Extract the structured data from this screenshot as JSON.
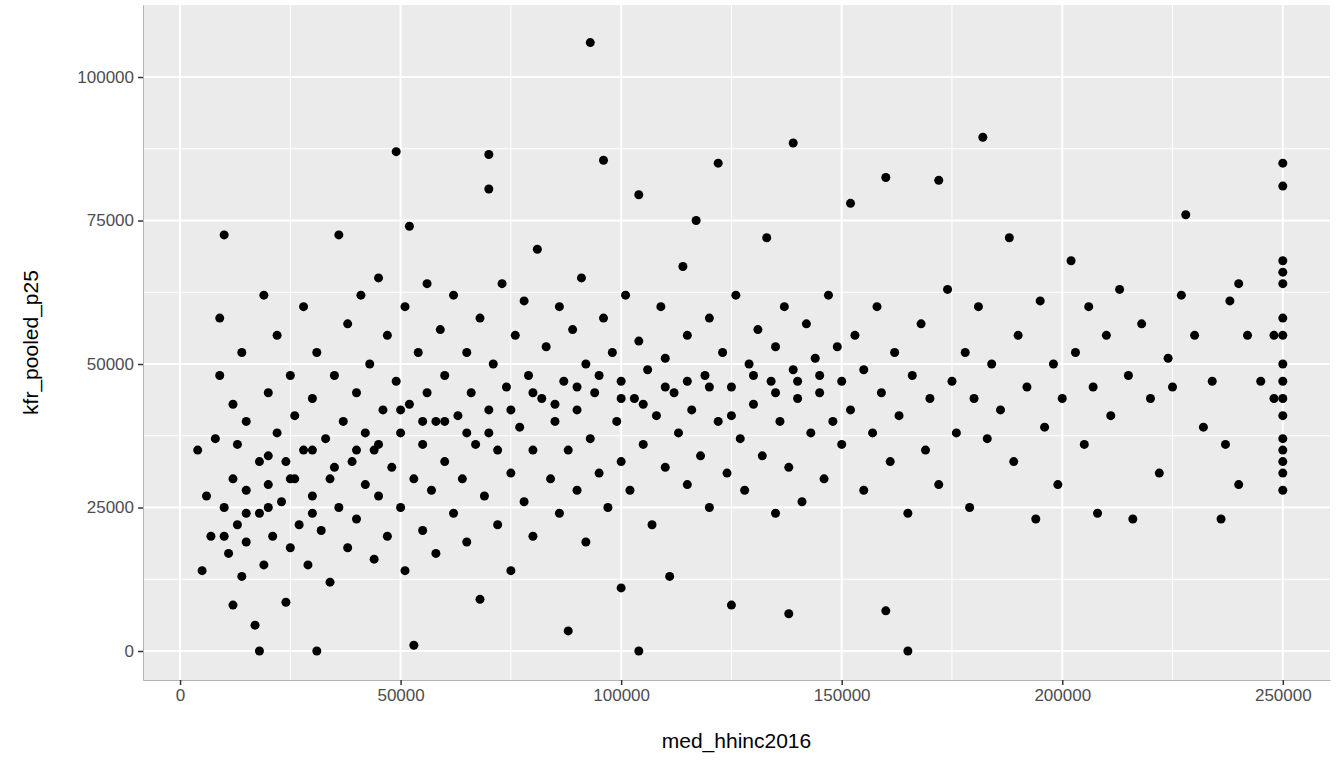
{
  "chart_data": {
    "type": "scatter",
    "x_label": "med_hhinc2016",
    "y_label": "kfr_pooled_p25",
    "color": "#000000",
    "marker": "circle",
    "grid": true,
    "xlim": [
      -8400,
      260700
    ],
    "ylim": [
      -5050,
      112550
    ],
    "xticks": [
      0,
      50000,
      100000,
      150000,
      200000,
      250000
    ],
    "yticks": [
      0,
      25000,
      50000,
      75000,
      100000
    ],
    "x": [
      4000,
      5000,
      6000,
      7000,
      8000,
      9000,
      9000,
      10000,
      10000,
      11000,
      12000,
      12000,
      12000,
      13000,
      13000,
      14000,
      14000,
      15000,
      15000,
      15000,
      17000,
      18000,
      18000,
      18000,
      19000,
      19000,
      20000,
      20000,
      21000,
      22000,
      22000,
      23000,
      24000,
      24000,
      25000,
      25000,
      26000,
      26000,
      27000,
      28000,
      28000,
      29000,
      30000,
      30000,
      31000,
      31000,
      32000,
      33000,
      34000,
      34000,
      35000,
      36000,
      36000,
      37000,
      38000,
      38000,
      39000,
      40000,
      40000,
      41000,
      42000,
      42000,
      43000,
      44000,
      44000,
      45000,
      45000,
      46000,
      47000,
      47000,
      48000,
      49000,
      49000,
      50000,
      50000,
      51000,
      51000,
      52000,
      52000,
      53000,
      53000,
      54000,
      55000,
      55000,
      56000,
      56000,
      57000,
      58000,
      58000,
      59000,
      60000,
      60000,
      62000,
      62000,
      63000,
      64000,
      65000,
      65000,
      66000,
      67000,
      68000,
      68000,
      69000,
      70000,
      70000,
      70000,
      71000,
      72000,
      72000,
      73000,
      74000,
      75000,
      75000,
      76000,
      77000,
      78000,
      78000,
      79000,
      80000,
      80000,
      81000,
      82000,
      83000,
      84000,
      85000,
      86000,
      86000,
      87000,
      88000,
      88000,
      89000,
      90000,
      90000,
      91000,
      92000,
      92000,
      93000,
      93000,
      94000,
      95000,
      96000,
      96000,
      97000,
      98000,
      99000,
      100000,
      100000,
      100000,
      101000,
      102000,
      103000,
      104000,
      104000,
      104000,
      105000,
      106000,
      107000,
      108000,
      109000,
      110000,
      110000,
      111000,
      112000,
      113000,
      114000,
      115000,
      115000,
      116000,
      117000,
      118000,
      119000,
      120000,
      120000,
      122000,
      122000,
      123000,
      124000,
      125000,
      125000,
      126000,
      127000,
      128000,
      129000,
      130000,
      131000,
      132000,
      133000,
      134000,
      135000,
      135000,
      136000,
      137000,
      138000,
      138000,
      139000,
      139000,
      140000,
      141000,
      142000,
      143000,
      144000,
      145000,
      146000,
      147000,
      148000,
      149000,
      150000,
      150000,
      152000,
      152000,
      153000,
      155000,
      155000,
      157000,
      158000,
      159000,
      160000,
      160000,
      161000,
      162000,
      163000,
      165000,
      165000,
      166000,
      168000,
      169000,
      170000,
      172000,
      172000,
      174000,
      175000,
      176000,
      178000,
      179000,
      180000,
      181000,
      182000,
      183000,
      184000,
      186000,
      188000,
      189000,
      190000,
      192000,
      194000,
      195000,
      196000,
      198000,
      199000,
      200000,
      202000,
      203000,
      205000,
      206000,
      207000,
      208000,
      210000,
      211000,
      213000,
      215000,
      216000,
      218000,
      220000,
      222000,
      224000,
      225000,
      227000,
      228000,
      230000,
      232000,
      234000,
      236000,
      237000,
      238000,
      240000,
      240000,
      242000,
      245000,
      248000,
      248000,
      250000,
      250000,
      250000,
      250000,
      250000,
      250000,
      250000,
      250000,
      250000,
      250000,
      250000,
      250000,
      250000,
      250000,
      250000,
      250000,
      30000,
      40000,
      50000,
      60000,
      70000,
      80000,
      90000,
      100000,
      110000,
      120000,
      130000,
      140000,
      20000,
      15000,
      25000,
      35000,
      45000,
      55000,
      65000,
      75000,
      85000,
      95000,
      105000,
      115000,
      125000,
      135000,
      145000,
      10000,
      20000,
      30000
    ],
    "values": [
      35000,
      14000,
      27000,
      20000,
      37000,
      58000,
      48000,
      72500,
      25000,
      17000,
      30000,
      8000,
      43000,
      22000,
      36000,
      13000,
      52000,
      28000,
      19000,
      40000,
      4500,
      0,
      24000,
      33000,
      62000,
      15000,
      45000,
      29000,
      20000,
      38000,
      55000,
      26000,
      8500,
      33000,
      18000,
      48000,
      30000,
      41000,
      22000,
      60000,
      35000,
      15000,
      27000,
      44000,
      0,
      52000,
      21000,
      37000,
      30000,
      12000,
      48000,
      72500,
      25000,
      40000,
      18000,
      57000,
      33000,
      45000,
      23000,
      62000,
      29000,
      38000,
      50000,
      16000,
      35000,
      65000,
      27000,
      42000,
      20000,
      55000,
      32000,
      87000,
      47000,
      38000,
      25000,
      60000,
      14000,
      43000,
      74000,
      1000,
      30000,
      52000,
      36000,
      21000,
      64000,
      45000,
      28000,
      40000,
      17000,
      56000,
      33000,
      48000,
      24000,
      62000,
      41000,
      30000,
      52000,
      19000,
      45000,
      36000,
      9000,
      58000,
      27000,
      86500,
      80500,
      42000,
      50000,
      22000,
      35000,
      64000,
      46000,
      31000,
      14000,
      55000,
      39000,
      26000,
      61000,
      48000,
      35000,
      20000,
      70000,
      44000,
      53000,
      30000,
      40000,
      60000,
      24000,
      47000,
      3500,
      35000,
      56000,
      28000,
      42000,
      65000,
      19000,
      50000,
      106000,
      37000,
      45000,
      31000,
      85500,
      58000,
      25000,
      52000,
      40000,
      47000,
      33000,
      11000,
      62000,
      28000,
      44000,
      79500,
      0,
      54000,
      36000,
      49000,
      22000,
      41000,
      60000,
      32000,
      51000,
      13000,
      45000,
      38000,
      67000,
      29000,
      55000,
      42000,
      75000,
      34000,
      48000,
      25000,
      58000,
      85000,
      40000,
      52000,
      31000,
      8000,
      46000,
      62000,
      37000,
      28000,
      50000,
      43000,
      56000,
      34000,
      72000,
      47000,
      24000,
      53000,
      40000,
      60000,
      6500,
      32000,
      88500,
      49000,
      44000,
      26000,
      57000,
      38000,
      51000,
      45000,
      30000,
      62000,
      40000,
      53000,
      36000,
      47000,
      78000,
      42000,
      55000,
      28000,
      49000,
      38000,
      60000,
      45000,
      82500,
      7000,
      33000,
      52000,
      41000,
      0,
      24000,
      48000,
      57000,
      35000,
      44000,
      82000,
      29000,
      63000,
      47000,
      38000,
      52000,
      25000,
      44000,
      60000,
      89500,
      37000,
      50000,
      42000,
      72000,
      33000,
      55000,
      46000,
      23000,
      61000,
      39000,
      50000,
      29000,
      44000,
      68000,
      52000,
      36000,
      60000,
      46000,
      24000,
      55000,
      41000,
      63000,
      48000,
      23000,
      57000,
      44000,
      31000,
      51000,
      46000,
      62000,
      76000,
      55000,
      39000,
      47000,
      23000,
      36000,
      61000,
      29000,
      64000,
      55000,
      47000,
      44000,
      55000,
      85000,
      81000,
      68000,
      66000,
      64000,
      58000,
      55000,
      50000,
      47000,
      44000,
      41000,
      37000,
      35000,
      33000,
      31000,
      28000,
      35000,
      35000,
      42000,
      40000,
      38000,
      45000,
      46000,
      44000,
      46000,
      46000,
      48000,
      47000,
      25000,
      24000,
      30000,
      32000,
      36000,
      40000,
      38000,
      42000,
      43000,
      48000,
      43000,
      47000,
      41000,
      45000,
      48000,
      20000,
      34000,
      24000
    ]
  }
}
